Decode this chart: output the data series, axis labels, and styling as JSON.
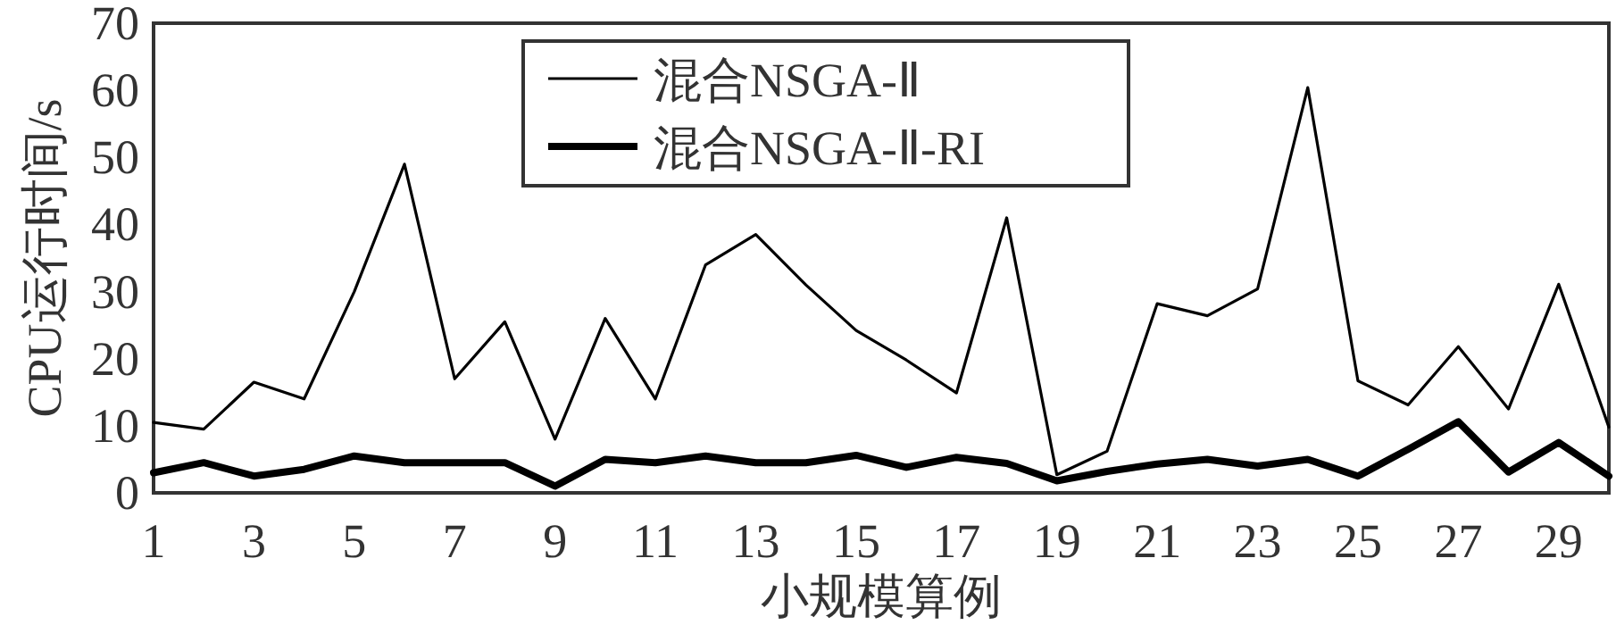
{
  "chart_data": {
    "type": "line",
    "xlabel": "小规模算例",
    "ylabel": "CPU运行时间/s",
    "x": [
      1,
      2,
      3,
      4,
      5,
      6,
      7,
      8,
      9,
      10,
      11,
      12,
      13,
      14,
      15,
      16,
      17,
      18,
      19,
      20,
      21,
      22,
      23,
      24,
      25,
      26,
      27,
      28,
      29,
      30
    ],
    "xlim": [
      1,
      30
    ],
    "xticks": [
      1,
      3,
      5,
      7,
      9,
      11,
      13,
      15,
      17,
      19,
      21,
      23,
      25,
      27,
      29
    ],
    "ylim": [
      0,
      70
    ],
    "yticks": [
      0,
      10,
      20,
      30,
      40,
      50,
      60,
      70
    ],
    "legend": "top",
    "marker": "none",
    "line_style": "solid",
    "series": [
      {
        "name": "混合NSGA-Ⅱ",
        "color": "#000000",
        "values": [
          10.5,
          9.5,
          16.5,
          14,
          30,
          49,
          17,
          25.5,
          8,
          26,
          14,
          34,
          38.5,
          31,
          24.2,
          19.8,
          14.9,
          41,
          2.7,
          6.2,
          28.2,
          26.4,
          30.4,
          60.4,
          16.7,
          13.1,
          21.8,
          12.5,
          31.1,
          9.8
        ]
      },
      {
        "name": "混合NSGA-Ⅱ-RI",
        "color": "#000000",
        "values": [
          3,
          4.5,
          2.5,
          3.5,
          5.5,
          4.5,
          4.5,
          4.5,
          1,
          5,
          4.5,
          5.5,
          4.5,
          4.5,
          5.6,
          3.8,
          5.3,
          4.4,
          1.8,
          3.2,
          4.3,
          5,
          4,
          5,
          2.5,
          6.5,
          10.6,
          3.1,
          7.5,
          2.5
        ]
      }
    ]
  }
}
